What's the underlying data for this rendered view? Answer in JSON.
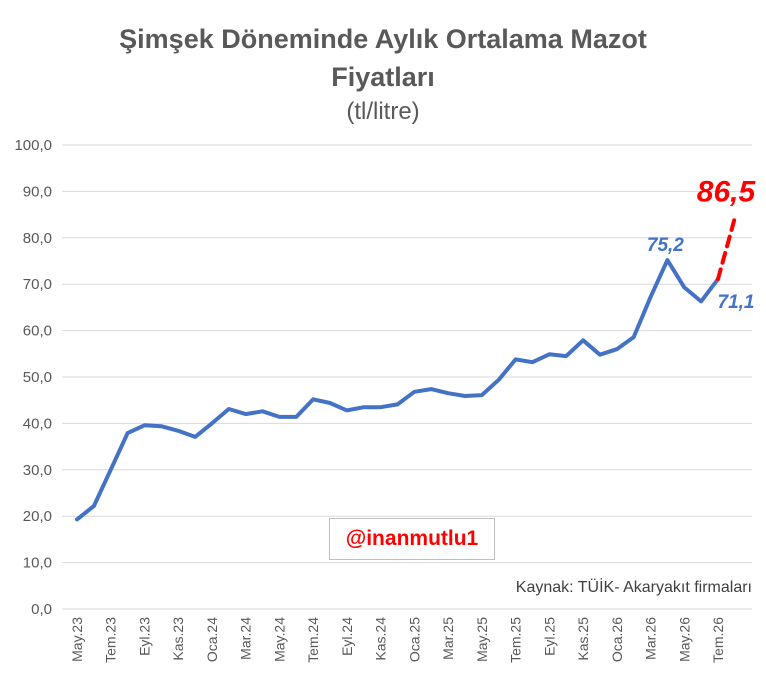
{
  "chart_data": {
    "type": "line",
    "title_line1": "Şimşek Döneminde Aylık Ortalama Mazot",
    "title_line2": "Fiyatları",
    "subtitle": "(tl/litre)",
    "ylim": [
      0,
      100
    ],
    "y_ticks": [
      "0,0",
      "10,0",
      "20,0",
      "30,0",
      "40,0",
      "50,0",
      "60,0",
      "70,0",
      "80,0",
      "90,0",
      "100,0"
    ],
    "x_tick_labels": [
      "May.23",
      "Tem.23",
      "Eyl.23",
      "Kas.23",
      "Oca.24",
      "Mar.24",
      "May.24",
      "Tem.24",
      "Eyl.24",
      "Kas.24",
      "Oca.25",
      "Mar.25",
      "May.25",
      "Tem.25",
      "Eyl.25",
      "Kas.25",
      "Oca.26",
      "Mar.26",
      "May.26",
      "Tem.26"
    ],
    "months": [
      "May.23",
      "Haz.23",
      "Tem.23",
      "Ağu.23",
      "Eyl.23",
      "Eki.23",
      "Kas.23",
      "Ara.23",
      "Oca.24",
      "Şub.24",
      "Mar.24",
      "Nis.24",
      "May.24",
      "Haz.24",
      "Tem.24",
      "Ağu.24",
      "Eyl.24",
      "Eki.24",
      "Kas.24",
      "Ara.24",
      "Oca.25",
      "Şub.25",
      "Mar.25",
      "Nis.25",
      "May.25",
      "Haz.25",
      "Tem.25",
      "Ağu.25",
      "Eyl.25",
      "Eki.25",
      "Kas.25",
      "Ara.25",
      "Oca.26",
      "Şub.26",
      "Mar.26",
      "Nis.26",
      "May.26",
      "Haz.26",
      "Tem.26"
    ],
    "values": [
      19.3,
      22.2,
      30.0,
      37.9,
      39.6,
      39.4,
      38.4,
      37.1,
      40.0,
      43.1,
      42.0,
      42.6,
      41.4,
      41.4,
      45.2,
      44.4,
      42.8,
      43.5,
      43.5,
      44.1,
      46.8,
      47.4,
      46.5,
      45.9,
      46.1,
      49.4,
      53.8,
      53.2,
      54.9,
      54.5,
      57.9,
      54.8,
      56.0,
      58.6,
      67.2,
      75.2,
      69.3,
      66.3,
      71.1
    ],
    "projection": {
      "from_month": "Tem.26",
      "from_value": 71.1,
      "value": 86.5
    },
    "annotations": {
      "peak": "75,2",
      "last": "71,1",
      "projection": "86,5"
    },
    "grid": true,
    "colors": {
      "line": "#4472c4",
      "projection": "#ff0000",
      "grid": "#d9d9d9",
      "label_blue": "#4472c4",
      "label_red": "#ff0000"
    }
  },
  "watermark": "@inanmutlu1",
  "source": "Kaynak: TÜİK- Akaryakıt firmaları"
}
